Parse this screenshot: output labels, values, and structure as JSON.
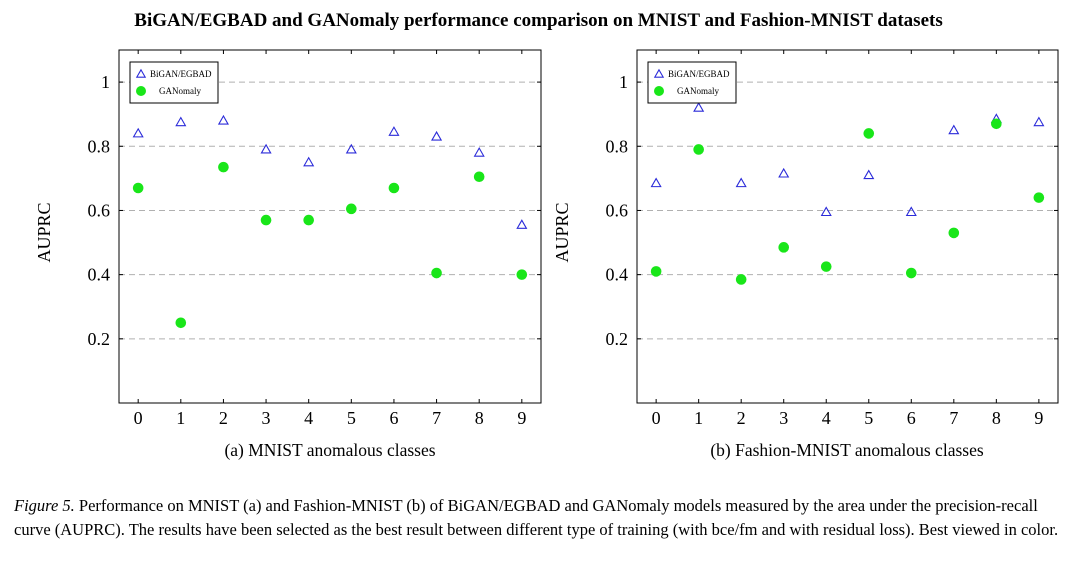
{
  "title": "BiGAN/EGBAD and GANomaly performance comparison on MNIST and Fashion-MNIST datasets",
  "colors": {
    "bigan": "#2b2bd9",
    "ganomaly": "#19e619",
    "grid": "#b0b0b0"
  },
  "chart_data": [
    {
      "type": "scatter",
      "title": "(a) MNIST anomalous classes",
      "xlabel": "",
      "ylabel": "AUPRC",
      "x": [
        0,
        1,
        2,
        3,
        4,
        5,
        6,
        7,
        8,
        9
      ],
      "xticks": [
        "0",
        "1",
        "2",
        "3",
        "4",
        "5",
        "6",
        "7",
        "8",
        "9"
      ],
      "yticks": [
        "0.2",
        "0.4",
        "0.6",
        "0.8",
        "1"
      ],
      "ytick_values": [
        0.2,
        0.4,
        0.6,
        0.8,
        1.0
      ],
      "xlim": [
        -0.45,
        9.45
      ],
      "ylim": [
        0.0,
        1.1
      ],
      "grid": "horizontal dashed",
      "legend": "top-left",
      "series": [
        {
          "name": "BiGAN/EGBAD",
          "marker": "triangle",
          "values": [
            0.84,
            0.875,
            0.88,
            0.79,
            0.75,
            0.79,
            0.845,
            0.83,
            0.78,
            0.555
          ]
        },
        {
          "name": "GANomaly",
          "marker": "circle",
          "values": [
            0.67,
            0.25,
            0.735,
            0.57,
            0.57,
            0.605,
            0.67,
            0.405,
            0.705,
            0.4
          ]
        }
      ]
    },
    {
      "type": "scatter",
      "title": "(b) Fashion-MNIST anomalous classes",
      "xlabel": "",
      "ylabel": "AUPRC",
      "x": [
        0,
        1,
        2,
        3,
        4,
        5,
        6,
        7,
        8,
        9
      ],
      "xticks": [
        "0",
        "1",
        "2",
        "3",
        "4",
        "5",
        "6",
        "7",
        "8",
        "9"
      ],
      "yticks": [
        "0.2",
        "0.4",
        "0.6",
        "0.8",
        "1"
      ],
      "ytick_values": [
        0.2,
        0.4,
        0.6,
        0.8,
        1.0
      ],
      "xlim": [
        -0.45,
        9.45
      ],
      "ylim": [
        0.0,
        1.1
      ],
      "grid": "horizontal dashed",
      "legend": "top-left",
      "series": [
        {
          "name": "BiGAN/EGBAD",
          "marker": "triangle",
          "values": [
            0.685,
            0.92,
            0.685,
            0.715,
            0.595,
            0.71,
            0.595,
            0.85,
            0.885,
            0.875
          ]
        },
        {
          "name": "GANomaly",
          "marker": "circle",
          "values": [
            0.41,
            0.79,
            0.385,
            0.485,
            0.425,
            0.84,
            0.405,
            0.53,
            0.87,
            0.64
          ]
        }
      ]
    }
  ],
  "caption": {
    "label": "Figure 5.",
    "text": " Performance on MNIST (a) and Fashion-MNIST (b) of BiGAN/EGBAD and GANomaly models measured by the area under the precision-recall curve (AUPRC). The results have been selected as the best result between different type of training (with bce/fm and with residual loss). Best viewed in color."
  }
}
